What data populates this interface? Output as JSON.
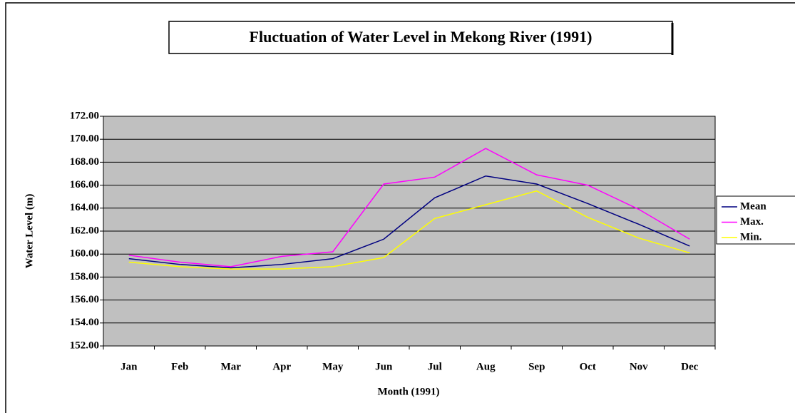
{
  "chart_data": {
    "type": "line",
    "title": "Fluctuation of Water Level in Mekong River (1991)",
    "x_label": "Month (1991)",
    "y_label": "Water Level (m)",
    "categories": [
      "Jan",
      "Feb",
      "Mar",
      "Apr",
      "May",
      "Jun",
      "Jul",
      "Aug",
      "Sep",
      "Oct",
      "Nov",
      "Dec"
    ],
    "series": [
      {
        "name": "Mean",
        "color": "#000080",
        "values": [
          159.6,
          159.1,
          158.8,
          159.1,
          159.6,
          161.3,
          164.9,
          166.8,
          166.1,
          164.4,
          162.6,
          160.7
        ]
      },
      {
        "name": "Max.",
        "color": "#ff00ff",
        "values": [
          159.9,
          159.3,
          158.9,
          159.8,
          160.2,
          166.1,
          166.7,
          169.2,
          166.9,
          166.0,
          163.9,
          161.3
        ]
      },
      {
        "name": "Min.",
        "color": "#ffff00",
        "values": [
          159.3,
          158.9,
          158.7,
          158.7,
          158.9,
          159.7,
          163.1,
          164.3,
          165.5,
          163.2,
          161.4,
          160.1
        ]
      }
    ],
    "ylim": [
      152,
      172
    ],
    "yticks": [
      {
        "value": 152,
        "label": "152.00"
      },
      {
        "value": 154,
        "label": "154.00"
      },
      {
        "value": 156,
        "label": "156.00"
      },
      {
        "value": 158,
        "label": "158.00"
      },
      {
        "value": 160,
        "label": "160.00"
      },
      {
        "value": 162,
        "label": "162.00"
      },
      {
        "value": 164,
        "label": "164.00"
      },
      {
        "value": 166,
        "label": "166.00"
      },
      {
        "value": 168,
        "label": "168.00"
      },
      {
        "value": 170,
        "label": "170.00"
      },
      {
        "value": 172,
        "label": "172.00"
      }
    ],
    "grid": true,
    "legend": "right",
    "plot_background": "#c0c0c0"
  }
}
